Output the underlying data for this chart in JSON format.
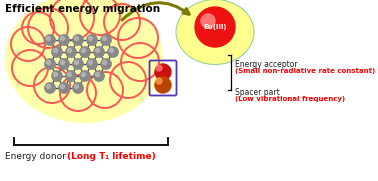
{
  "bg_color": "#ffffff",
  "title": "Efficient energy migration",
  "donor_blob_color": "#FF5555",
  "donor_glow_color": "#FFFFA0",
  "acceptor_glow_color": "#FFFF88",
  "acceptor_glow_edge": "#99CC99",
  "atom_color": "#888888",
  "atom_highlight": "#bbbbbb",
  "eu_color": "#EE1111",
  "eu_highlight": "#FF8888",
  "arrow_color": "#7A7A00",
  "spacer_box_color": "#5533BB",
  "red_ball_color": "#CC1111",
  "red_ball_hl": "#FF7777",
  "orange_ball_color": "#BB4400",
  "orange_ball_hl": "#FF9955",
  "label_black": "#222222",
  "label_red": "#FF0000",
  "bracket_color": "#111111",
  "energy_acceptor_text": "Energy acceptor",
  "small_nonrad_text": "(Small non-radiative rate constant)",
  "spacer_text": "Spacer part",
  "low_vib_text": "(Low vibrational frequency)",
  "donor_text": "Energy donor ",
  "long_t1_text": "(Long T₁ lifetime)",
  "eu_label": "Eu(III)",
  "figsize": [
    3.78,
    1.81
  ],
  "dpi": 100,
  "cloud_circles": [
    [
      48,
      28,
      20
    ],
    [
      72,
      18,
      22
    ],
    [
      100,
      15,
      20
    ],
    [
      122,
      22,
      18
    ],
    [
      138,
      38,
      20
    ],
    [
      140,
      62,
      19
    ],
    [
      128,
      80,
      18
    ],
    [
      105,
      90,
      18
    ],
    [
      78,
      93,
      18
    ],
    [
      52,
      85,
      18
    ],
    [
      30,
      68,
      18
    ],
    [
      28,
      44,
      17
    ],
    [
      38,
      28,
      16
    ]
  ],
  "atom_rows": [
    [
      [
        50,
        40
      ],
      [
        64,
        40
      ],
      [
        78,
        40
      ],
      [
        92,
        40
      ],
      [
        106,
        40
      ]
    ],
    [
      [
        57,
        52
      ],
      [
        71,
        52
      ],
      [
        85,
        52
      ],
      [
        99,
        52
      ],
      [
        113,
        52
      ]
    ],
    [
      [
        50,
        64
      ],
      [
        64,
        64
      ],
      [
        78,
        64
      ],
      [
        92,
        64
      ],
      [
        106,
        64
      ]
    ],
    [
      [
        57,
        76
      ],
      [
        71,
        76
      ],
      [
        85,
        76
      ],
      [
        99,
        76
      ]
    ],
    [
      [
        50,
        88
      ],
      [
        64,
        88
      ],
      [
        78,
        88
      ]
    ]
  ]
}
